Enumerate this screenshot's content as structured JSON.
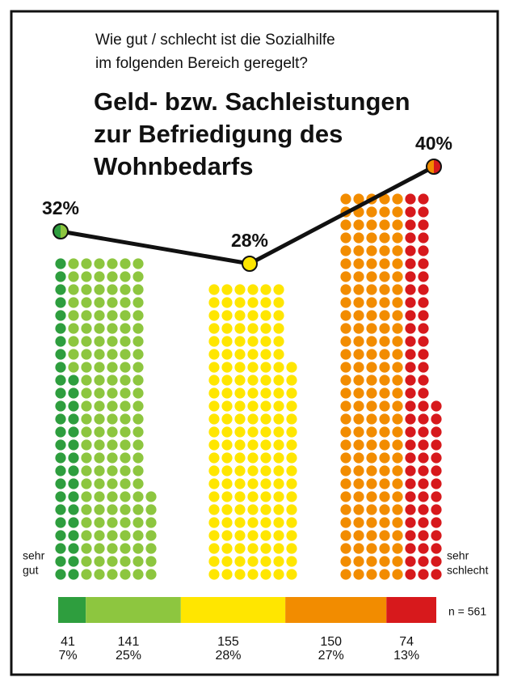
{
  "chart_data": {
    "type": "dot_matrix",
    "question": [
      "Wie gut / schlecht ist die Sozialhilfe",
      "im folgenden Bereich geregelt?"
    ],
    "title": [
      "Geld- bzw. Sachleistungen",
      "zur Befriedigung des",
      "Wohnbedarfs"
    ],
    "left_label": [
      "sehr",
      "gut"
    ],
    "right_label": [
      "sehr",
      "schlecht"
    ],
    "n_label": "n = 561",
    "counts": [
      41,
      141,
      155,
      150,
      74
    ],
    "percents": [
      7,
      25,
      28,
      27,
      13
    ],
    "value_labels": [
      "7%",
      "25%",
      "28%",
      "27%",
      "13%"
    ],
    "colors": [
      "#2e9e3e",
      "#8dc63f",
      "#ffe600",
      "#f28c00",
      "#d7191c"
    ],
    "summary": {
      "values": [
        32,
        28,
        40
      ],
      "value_labels": [
        "32%",
        "28%",
        "40%"
      ]
    }
  }
}
